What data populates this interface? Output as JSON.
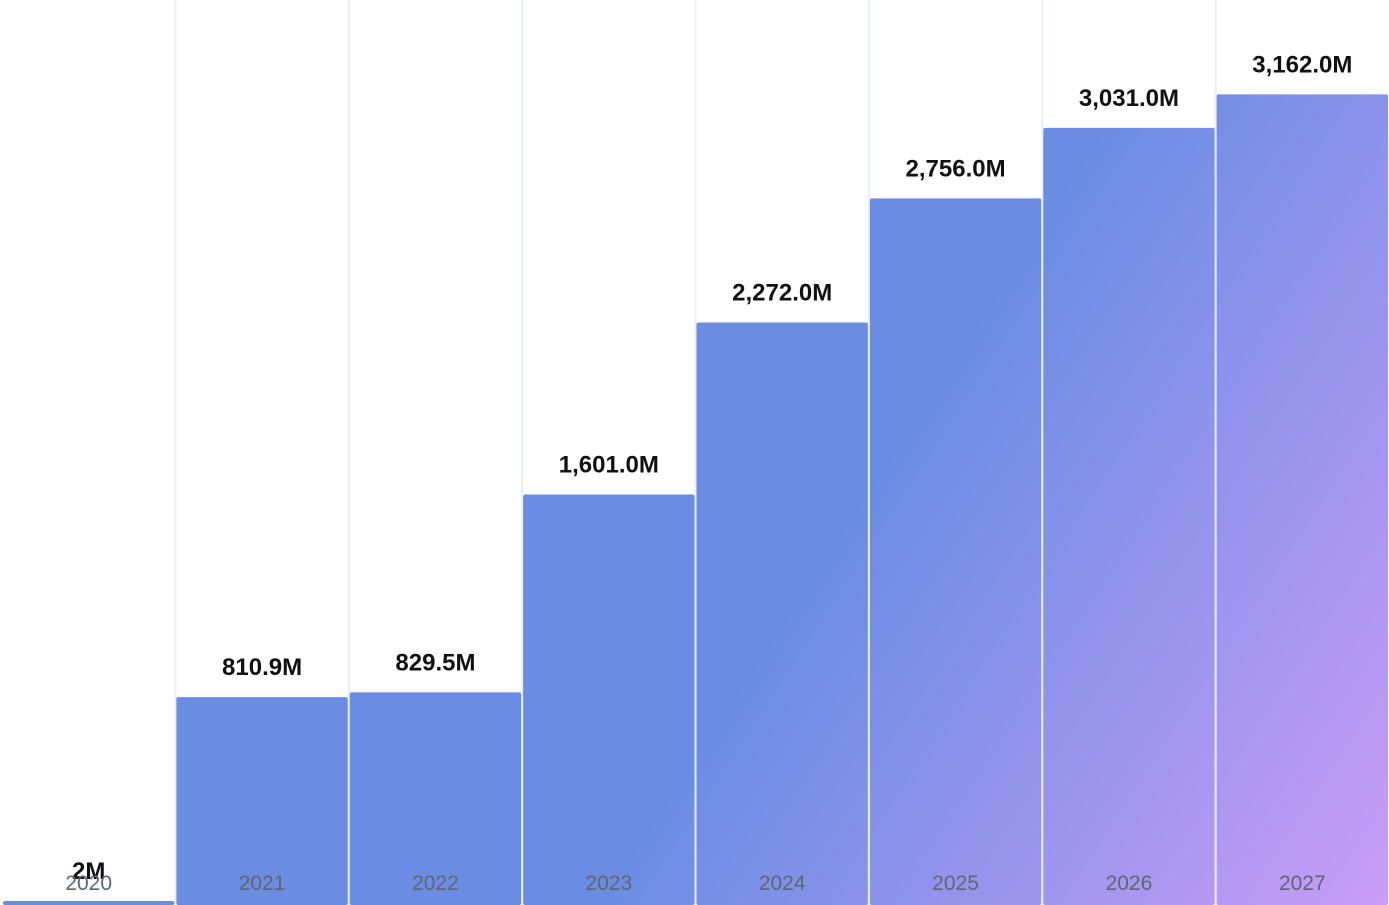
{
  "chart_data": {
    "type": "bar",
    "categories": [
      "2020",
      "2021",
      "2022",
      "2023",
      "2024",
      "2025",
      "2026",
      "2027"
    ],
    "values": [
      2,
      810.9,
      829.5,
      1601.0,
      2272.0,
      2756.0,
      3031.0,
      3162.0
    ],
    "data_labels": [
      "2M",
      "810.9M",
      "829.5M",
      "1,601.0M",
      "2,272.0M",
      "2,756.0M",
      "3,031.0M",
      "3,162.0M"
    ],
    "unit": "M",
    "ylim": [
      0,
      3530
    ],
    "grid": "vertical",
    "colors": {
      "bar_top": "#6a8de3",
      "bar_bottom_right": "#c99cf8",
      "grid": "#e8eefb",
      "tick_text": "#5f6672",
      "label_text": "#111111"
    }
  }
}
